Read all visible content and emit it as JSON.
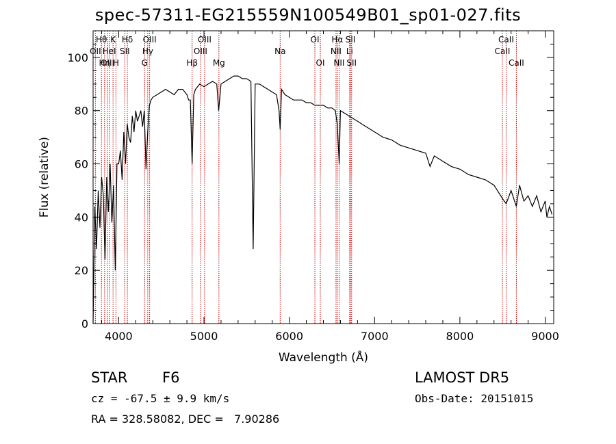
{
  "chart_data": {
    "type": "line",
    "title": "spec-57311-EG215559N100549B01_sp01-027.fits",
    "xlabel": "Wavelength (Å)",
    "ylabel": "Flux (relative)",
    "xlim": [
      3700,
      9100
    ],
    "ylim": [
      0,
      110
    ],
    "xticks": [
      4000,
      5000,
      6000,
      7000,
      8000,
      9000
    ],
    "yticks": [
      0,
      20,
      40,
      60,
      80,
      100
    ],
    "series": [
      {
        "x": [
          3700,
          3720,
          3740,
          3760,
          3780,
          3800,
          3820,
          3840,
          3860,
          3880,
          3900,
          3920,
          3940,
          3960,
          3980,
          4000,
          4020,
          4040,
          4060,
          4080,
          4100,
          4120,
          4140,
          4160,
          4180,
          4200,
          4220,
          4240,
          4260,
          4280,
          4300,
          4320,
          4340,
          4360,
          4380,
          4400,
          4450,
          4500,
          4550,
          4600,
          4650,
          4700,
          4750,
          4800,
          4820,
          4840,
          4861,
          4880,
          4900,
          4950,
          5000,
          5050,
          5100,
          5150,
          5172,
          5200,
          5250,
          5300,
          5350,
          5400,
          5450,
          5500,
          5550,
          5577,
          5600,
          5650,
          5700,
          5750,
          5800,
          5850,
          5880,
          5893,
          5910,
          5950,
          6000,
          6050,
          6100,
          6150,
          6200,
          6250,
          6300,
          6350,
          6400,
          6450,
          6500,
          6540,
          6563,
          6585,
          6600,
          6650,
          6700,
          6750,
          6800,
          6850,
          6900,
          6950,
          7000,
          7100,
          7200,
          7300,
          7400,
          7500,
          7600,
          7650,
          7700,
          7800,
          7900,
          8000,
          8100,
          8200,
          8300,
          8400,
          8498,
          8542,
          8600,
          8662,
          8700,
          8750,
          8800,
          8850,
          8900,
          8950,
          9000,
          9020,
          9050,
          9080
        ],
        "y": [
          0,
          44,
          28,
          50,
          36,
          55,
          48,
          24,
          55,
          42,
          60,
          38,
          52,
          20,
          60,
          60,
          65,
          54,
          72,
          60,
          75,
          70,
          68,
          78,
          72,
          80,
          76,
          78,
          80,
          74,
          80,
          58,
          72,
          82,
          84,
          85,
          86,
          87,
          88,
          87,
          86,
          88,
          88,
          86,
          84,
          84,
          60,
          86,
          88,
          90,
          89,
          90,
          91,
          90,
          80,
          90,
          91,
          92,
          93,
          93,
          92,
          92,
          91,
          28,
          90,
          90,
          89,
          88,
          87,
          86,
          80,
          73,
          88,
          86,
          85,
          84,
          84,
          84,
          83,
          83,
          82,
          82,
          82,
          81,
          81,
          80,
          75,
          60,
          80,
          79,
          78,
          77,
          76,
          75,
          74,
          73,
          72,
          70,
          69,
          67,
          66,
          65,
          64,
          59,
          63,
          61,
          59,
          58,
          56,
          55,
          54,
          52,
          47,
          45,
          50,
          44,
          52,
          46,
          48,
          44,
          48,
          42,
          46,
          40,
          44,
          41
        ]
      }
    ],
    "lines": [
      {
        "wl": 3727,
        "label": "OII",
        "row": 1
      },
      {
        "wl": 3798,
        "label": "Hθ",
        "row": 0
      },
      {
        "wl": 3835,
        "label": "Hη",
        "row": 2
      },
      {
        "wl": 3869,
        "label": "OIII",
        "row": 2
      },
      {
        "wl": 3889,
        "label": "HeI",
        "row": 1
      },
      {
        "wl": 3934,
        "label": "K",
        "row": 0
      },
      {
        "wl": 3968,
        "label": "H",
        "row": 2
      },
      {
        "wl": 4072,
        "label": "SII",
        "row": 1
      },
      {
        "wl": 4102,
        "label": "Hδ",
        "row": 0
      },
      {
        "wl": 4304,
        "label": "G",
        "row": 2
      },
      {
        "wl": 4341,
        "label": "Hγ",
        "row": 1
      },
      {
        "wl": 4363,
        "label": "OIII",
        "row": 0
      },
      {
        "wl": 4861,
        "label": "Hβ",
        "row": 2
      },
      {
        "wl": 4959,
        "label": "OIII",
        "row": 1
      },
      {
        "wl": 5007,
        "label": "OIII",
        "row": 0
      },
      {
        "wl": 5175,
        "label": "Mg",
        "row": 2
      },
      {
        "wl": 5893,
        "label": "Na",
        "row": 1
      },
      {
        "wl": 6300,
        "label": "OI",
        "row": 0
      },
      {
        "wl": 6364,
        "label": "OI",
        "row": 2
      },
      {
        "wl": 6548,
        "label": "NII",
        "row": 1
      },
      {
        "wl": 6563,
        "label": "Hα",
        "row": 0
      },
      {
        "wl": 6584,
        "label": "NII",
        "row": 2
      },
      {
        "wl": 6708,
        "label": "Li",
        "row": 1
      },
      {
        "wl": 6717,
        "label": "SII",
        "row": 0
      },
      {
        "wl": 6731,
        "label": "SII",
        "row": 2
      },
      {
        "wl": 8498,
        "label": "CaII",
        "row": 1
      },
      {
        "wl": 8542,
        "label": "CaII",
        "row": 0
      },
      {
        "wl": 8662,
        "label": "CaII",
        "row": 2
      }
    ],
    "colors": {
      "spectrum": "#000000",
      "line_marker": "#cc0000",
      "axes": "#000000"
    }
  },
  "info": {
    "class": "STAR",
    "subclass": "F6",
    "survey": "LAMOST DR5",
    "cz": "cz = -67.5 ± 9.9 km/s",
    "obsdate": "Obs-Date: 20151015",
    "coords": "RA = 328.58082, DEC =   7.90286"
  }
}
